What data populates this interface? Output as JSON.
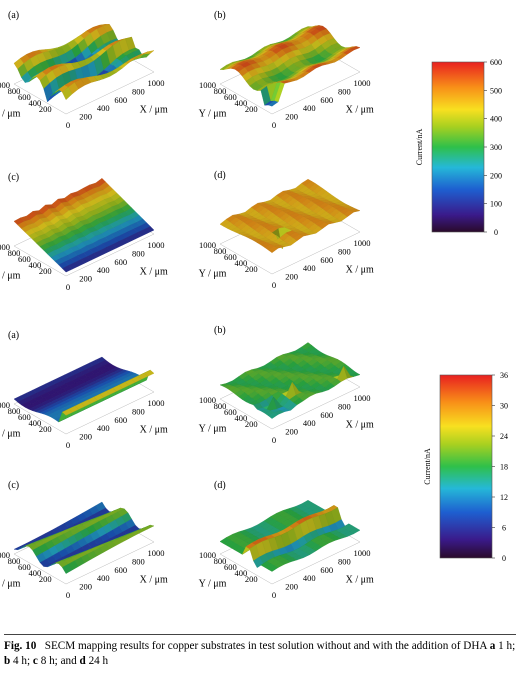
{
  "figure": {
    "caption_label": "Fig. 10",
    "caption_parts": [
      {
        "text": "SECM mapping results for copper substrates in test solution without and with the addition of DHA ",
        "bold": false
      },
      {
        "text": "a",
        "bold": true
      },
      {
        "text": " 1 h; ",
        "bold": false
      },
      {
        "text": "b",
        "bold": true
      },
      {
        "text": " 4 h; ",
        "bold": false
      },
      {
        "text": "c",
        "bold": true
      },
      {
        "text": " 8 h; and ",
        "bold": false
      },
      {
        "text": "d",
        "bold": true
      },
      {
        "text": " 24 h",
        "bold": false
      }
    ]
  },
  "axes": {
    "y_title": "Y / μm",
    "x_title": "X / μm",
    "y_ticks": [
      "200",
      "400",
      "600",
      "800",
      "1000"
    ],
    "x_ticks": [
      "0",
      "200",
      "400",
      "600",
      "800",
      "1000"
    ]
  },
  "top_group": {
    "panels": [
      {
        "letter": "(a)",
        "surface": "a"
      },
      {
        "letter": "(b)",
        "surface": "b"
      },
      {
        "letter": "(c)",
        "surface": "c"
      },
      {
        "letter": "(d)",
        "surface": "d"
      }
    ],
    "colorbar": {
      "title": "Current/nA",
      "ticks": [
        "0",
        "100",
        "200",
        "300",
        "400",
        "500",
        "600"
      ],
      "min": 0,
      "max": 600
    }
  },
  "bottom_group": {
    "panels": [
      {
        "letter": "(a)",
        "surface": "a"
      },
      {
        "letter": "(b)",
        "surface": "b"
      },
      {
        "letter": "(c)",
        "surface": "c"
      },
      {
        "letter": "(d)",
        "surface": "d"
      }
    ],
    "colorbar": {
      "title": "Current/nA",
      "ticks": [
        "0",
        "6",
        "12",
        "18",
        "24",
        "30",
        "36"
      ],
      "min": 0,
      "max": 36
    }
  },
  "colors": {
    "scale": [
      "#2a0a2a",
      "#3a1a8a",
      "#1e5fd0",
      "#25b8d8",
      "#2fc04a",
      "#a8d020",
      "#f8e020",
      "#f89018",
      "#e82020"
    ]
  }
}
